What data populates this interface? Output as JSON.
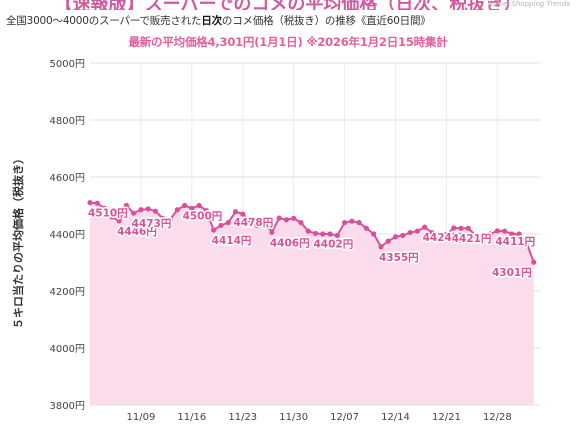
{
  "header": {
    "title_cut": "【速報版】スーパーでのコメの平均価格（日次、税抜き）",
    "brand": "Nikkei Shopping Trends"
  },
  "subtitle": {
    "prefix": "全国3000〜4000のスーパーで販売された",
    "bold": "日次",
    "suffix": "のコメ価格（税抜き）の推移《直近60日間》"
  },
  "headline": "最新の平均価格4,301円(1月1日) ※2026年1月2日15時集計",
  "colors": {
    "accent": "#e0609f",
    "line": "#d9509a",
    "fill": "#fbdcec",
    "label": "#d9509a"
  },
  "chart_data": {
    "type": "area",
    "ylabel": "５キロ当たりの平均価格（税抜き）",
    "ylim": [
      3800,
      5000
    ],
    "yticks": [
      3800,
      4000,
      4200,
      4400,
      4600,
      4800,
      5000
    ],
    "ytick_labels": [
      "3800円",
      "4000円",
      "4200円",
      "4400円",
      "4600円",
      "4800円",
      "5000円"
    ],
    "xlim": [
      0,
      62
    ],
    "xticks": [
      {
        "x": 7,
        "label": "11/09"
      },
      {
        "x": 14,
        "label": "11/16"
      },
      {
        "x": 21,
        "label": "11/23"
      },
      {
        "x": 28,
        "label": "11/30"
      },
      {
        "x": 35,
        "label": "12/07"
      },
      {
        "x": 42,
        "label": "12/14"
      },
      {
        "x": 49,
        "label": "12/21"
      },
      {
        "x": 56,
        "label": "12/28"
      }
    ],
    "grid": true,
    "values": [
      4510,
      4508,
      4490,
      4460,
      4446,
      4500,
      4473,
      4485,
      4488,
      4480,
      4455,
      4450,
      4485,
      4500,
      4490,
      4500,
      4482,
      4414,
      4430,
      4440,
      4478,
      4470,
      4444,
      4430,
      4446,
      4406,
      4456,
      4450,
      4455,
      4440,
      4410,
      4402,
      4400,
      4400,
      4395,
      4440,
      4445,
      4440,
      4420,
      4400,
      4355,
      4375,
      4390,
      4395,
      4405,
      4410,
      4424,
      4405,
      4400,
      4398,
      4421,
      4420,
      4420,
      4395,
      4390,
      4400,
      4411,
      4410,
      4400,
      4400,
      4370,
      4301
    ],
    "annotations": [
      {
        "i": 0,
        "value": 4510,
        "label": "4510円"
      },
      {
        "i": 4,
        "value": 4446,
        "label": "4446円"
      },
      {
        "i": 6,
        "value": 4473,
        "label": "4473円"
      },
      {
        "i": 13,
        "value": 4500,
        "label": "4500円"
      },
      {
        "i": 17,
        "value": 4414,
        "label": "4414円"
      },
      {
        "i": 20,
        "value": 4478,
        "label": "4478円"
      },
      {
        "i": 25,
        "value": 4406,
        "label": "4406円"
      },
      {
        "i": 31,
        "value": 4402,
        "label": "4402円"
      },
      {
        "i": 40,
        "value": 4355,
        "label": "4355円"
      },
      {
        "i": 46,
        "value": 4424,
        "label": "4424円"
      },
      {
        "i": 50,
        "value": 4421,
        "label": "4421円"
      },
      {
        "i": 56,
        "value": 4411,
        "label": "4411円"
      },
      {
        "i": 61,
        "value": 4301,
        "label": "4301円"
      }
    ]
  }
}
